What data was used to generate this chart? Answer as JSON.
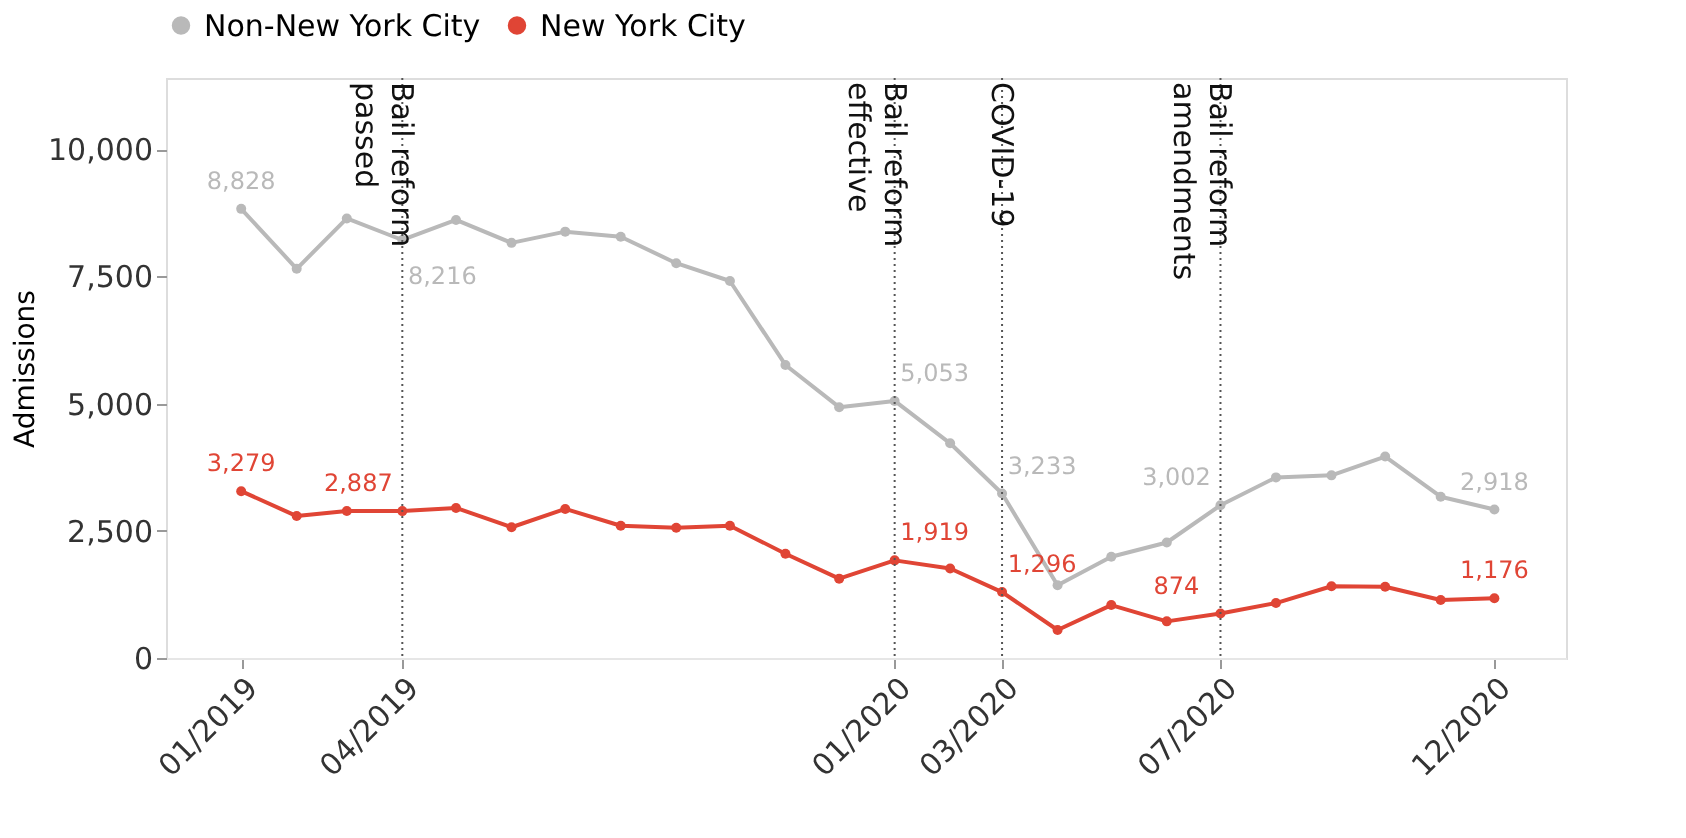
{
  "chart_data": {
    "type": "line",
    "x": [
      "2019-01",
      "2019-02",
      "2019-03",
      "2019-04",
      "2019-05",
      "2019-06",
      "2019-07",
      "2019-08",
      "2019-09",
      "2019-10",
      "2019-11",
      "2019-12",
      "2020-01",
      "2020-02",
      "2020-03",
      "2020-04",
      "2020-05",
      "2020-06",
      "2020-07",
      "2020-08",
      "2020-09",
      "2020-10",
      "2020-11",
      "2020-12"
    ],
    "series": [
      {
        "name": "Non-New York City",
        "color": "#b9b9b9",
        "values": [
          8828,
          7650,
          8640,
          8216,
          8610,
          8160,
          8380,
          8280,
          7760,
          7410,
          5760,
          4930,
          5053,
          4220,
          3233,
          1430,
          1990,
          2270,
          3002,
          3550,
          3590,
          3960,
          3170,
          2918
        ],
        "value_labels": [
          "8,828",
          null,
          null,
          "8,216",
          null,
          null,
          null,
          null,
          null,
          null,
          null,
          null,
          "5,053",
          null,
          "3,233",
          null,
          null,
          null,
          "3,002",
          null,
          null,
          null,
          null,
          "2,918"
        ]
      },
      {
        "name": "New York City",
        "color": "#e04535",
        "values": [
          3279,
          2790,
          2890,
          2887,
          2950,
          2570,
          2930,
          2600,
          2560,
          2600,
          2050,
          1560,
          1919,
          1760,
          1296,
          550,
          1040,
          720,
          874,
          1080,
          1410,
          1400,
          1140,
          1176
        ],
        "value_labels": [
          "3,279",
          null,
          null,
          "2,887",
          null,
          null,
          null,
          null,
          null,
          null,
          null,
          null,
          "1,919",
          null,
          "1,296",
          null,
          null,
          null,
          "874",
          null,
          null,
          null,
          null,
          "1,176"
        ]
      }
    ],
    "ylabel": "Admissions",
    "ylim": [
      0,
      11400
    ],
    "yticks": [
      0,
      {
        "value": 2500,
        "label": "2,500"
      },
      {
        "value": 5000,
        "label": "5,000"
      },
      {
        "value": 7500,
        "label": "7,500"
      },
      {
        "value": 10000,
        "label": "10,000"
      }
    ],
    "xlim": [
      "2018-11-20",
      "2021-01-10"
    ],
    "xticks": [
      {
        "value": "2019-01",
        "label": "01/2019"
      },
      {
        "value": "2019-04",
        "label": "04/2019"
      },
      {
        "value": "2020-01",
        "label": "01/2020"
      },
      {
        "value": "2020-03",
        "label": "03/2020"
      },
      {
        "value": "2020-07",
        "label": "07/2020"
      },
      {
        "value": "2020-12",
        "label": "12/2020"
      }
    ],
    "ref_lines": [
      {
        "axis": "x",
        "value": "2019-04",
        "label": "Bail reform\npassed",
        "line_style": "dotted"
      },
      {
        "axis": "x",
        "value": "2020-01",
        "label": "Bail reform\neffective",
        "line_style": "dotted"
      },
      {
        "axis": "x",
        "value": "2020-03",
        "label": "COVID-19",
        "line_style": "dotted"
      },
      {
        "axis": "x",
        "value": "2020-07",
        "label": "Bail reform\namendments",
        "line_style": "dotted"
      }
    ],
    "grid": false,
    "legend": "top left",
    "marker": "circle",
    "line_style": "solid"
  }
}
